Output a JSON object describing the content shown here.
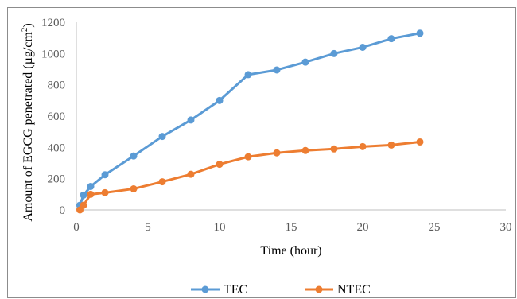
{
  "chart_data": {
    "type": "line",
    "title": "",
    "xlabel": "Time (hour)",
    "ylabel_main": "Amount of EGCG penetrated (µg/cm",
    "ylabel_sup": "2",
    "ylabel_end": ")",
    "xlim": [
      0,
      30
    ],
    "ylim": [
      0,
      1200
    ],
    "x_ticks": [
      0,
      5,
      10,
      15,
      20,
      25,
      30
    ],
    "y_ticks": [
      0,
      200,
      400,
      600,
      800,
      1000,
      1200
    ],
    "x_tick_labels": [
      "0",
      "5",
      "10",
      "15",
      "20",
      "25",
      "30"
    ],
    "y_tick_labels": [
      "0",
      "200",
      "400",
      "600",
      "800",
      "1000",
      "1200"
    ],
    "grid": false,
    "legend_position": "bottom",
    "series": [
      {
        "name": "TEC",
        "color": "#5b9bd5",
        "x": [
          0.25,
          0.5,
          1,
          2,
          4,
          6,
          8,
          10,
          12,
          14,
          16,
          18,
          20,
          22,
          24
        ],
        "y": [
          30,
          95,
          150,
          225,
          345,
          470,
          575,
          700,
          865,
          895,
          945,
          1000,
          1040,
          1095,
          1130
        ]
      },
      {
        "name": "NTEC",
        "color": "#ed7d31",
        "x": [
          0.25,
          0.5,
          1,
          2,
          4,
          6,
          8,
          10,
          12,
          14,
          16,
          18,
          20,
          22,
          24
        ],
        "y": [
          0,
          30,
          100,
          110,
          135,
          180,
          228,
          292,
          340,
          365,
          380,
          390,
          405,
          415,
          435
        ]
      }
    ]
  }
}
